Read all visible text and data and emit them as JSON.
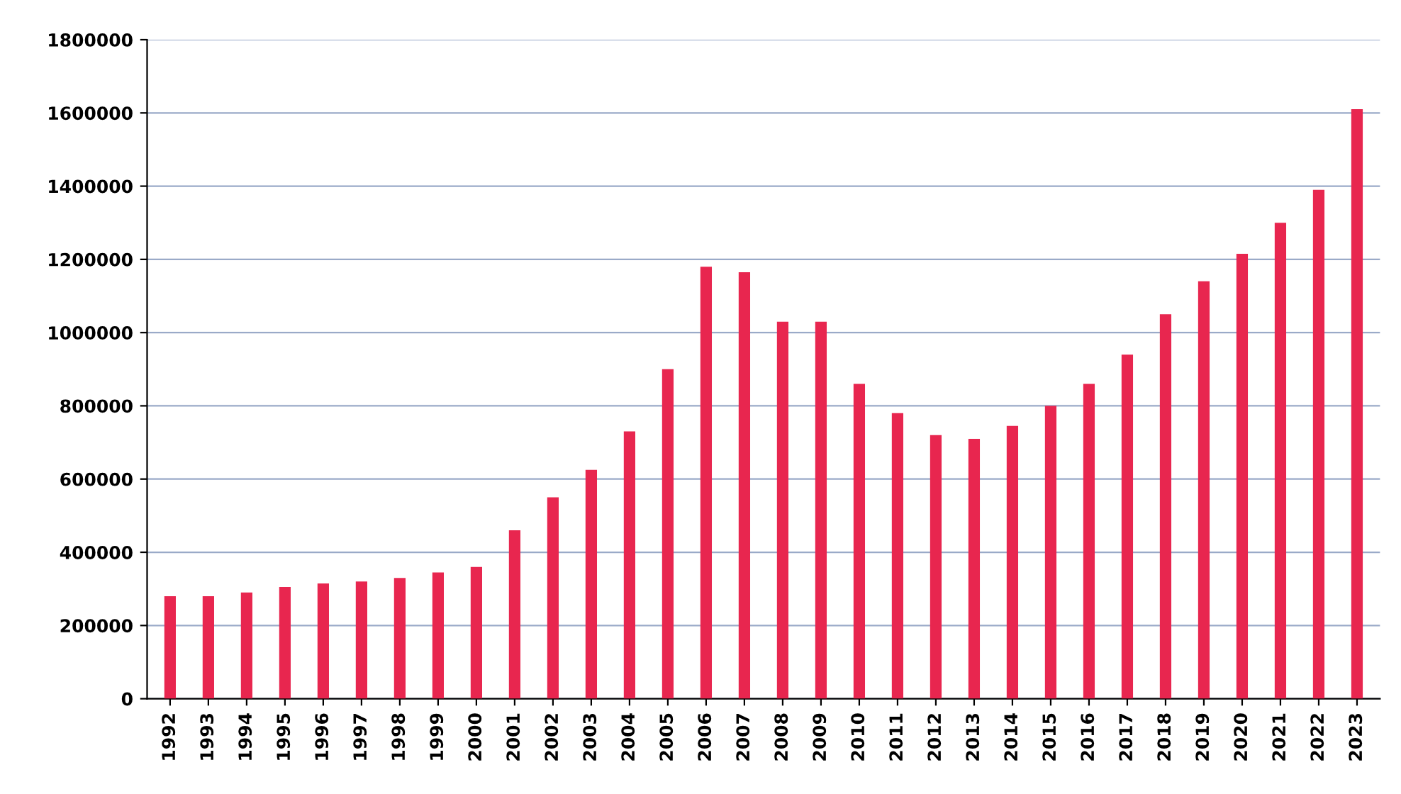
{
  "chart_data": {
    "type": "bar",
    "categories": [
      "1992",
      "1993",
      "1994",
      "1995",
      "1996",
      "1997",
      "1998",
      "1999",
      "2000",
      "2001",
      "2002",
      "2003",
      "2004",
      "2005",
      "2006",
      "2007",
      "2008",
      "2009",
      "2010",
      "2011",
      "2012",
      "2013",
      "2014",
      "2015",
      "2016",
      "2017",
      "2018",
      "2019",
      "2020",
      "2021",
      "2022",
      "2023"
    ],
    "values": [
      280000,
      280000,
      290000,
      305000,
      315000,
      320000,
      330000,
      345000,
      360000,
      460000,
      550000,
      625000,
      730000,
      900000,
      1180000,
      1165000,
      1030000,
      1030000,
      860000,
      780000,
      720000,
      710000,
      745000,
      800000,
      860000,
      940000,
      1050000,
      1140000,
      1215000,
      1300000,
      1390000,
      1610000
    ],
    "color": "#e8264f",
    "ylim": [
      0,
      1800000
    ],
    "yticks": [
      0,
      200000,
      400000,
      600000,
      800000,
      1000000,
      1200000,
      1400000,
      1600000,
      1800000
    ],
    "grid": "y"
  }
}
